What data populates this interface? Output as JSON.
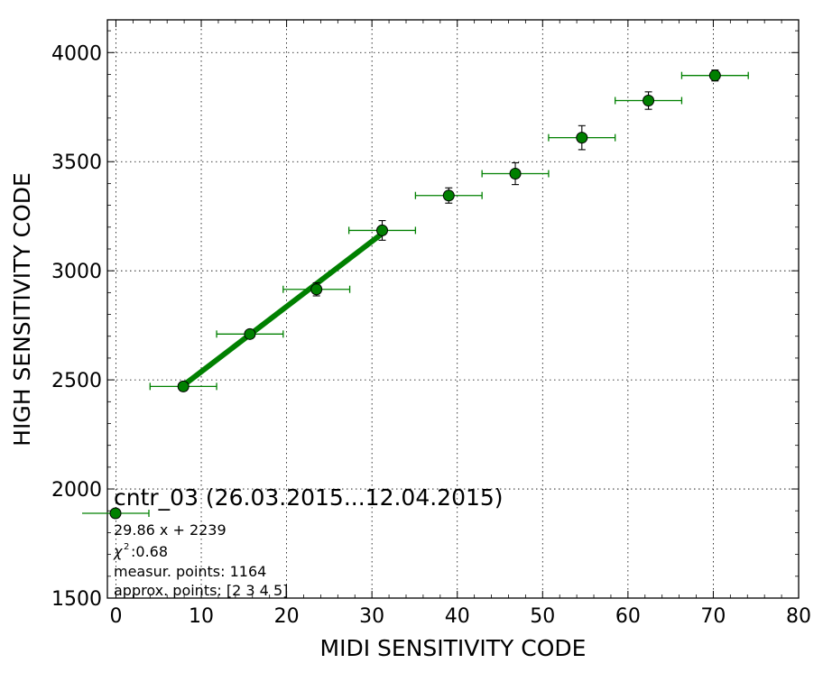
{
  "chart_data": {
    "type": "scatter",
    "xlabel": "MIDI SENSITIVITY CODE",
    "ylabel": "HIGH SENSITIVITY CODE",
    "xlim": [
      -1,
      80
    ],
    "ylim": [
      1500,
      4150
    ],
    "x_ticks": [
      0,
      10,
      20,
      30,
      40,
      50,
      60,
      70,
      80
    ],
    "y_ticks": [
      1500,
      2000,
      2500,
      3000,
      3500,
      4000
    ],
    "grid": true,
    "colors": {
      "series": "#008000",
      "marker_edge": "#000000"
    },
    "series": [
      {
        "x": [
          7.9,
          15.7,
          23.5,
          31.2,
          39.0,
          46.8,
          54.6,
          62.4,
          70.2
        ],
        "y": [
          2470,
          2710,
          2915,
          3185,
          3345,
          3445,
          3610,
          3780,
          3895
        ],
        "xerr": [
          3.9,
          3.9,
          3.9,
          3.9,
          3.9,
          3.9,
          3.9,
          3.9,
          3.9
        ],
        "yerr": [
          20,
          15,
          30,
          45,
          35,
          50,
          55,
          40,
          25
        ]
      }
    ],
    "fit": {
      "slope": 29.86,
      "intercept": 2239,
      "x_range": [
        7.9,
        31.2
      ]
    },
    "legend": {
      "title": "cntr_03 (26.03.2015...12.04.2015)",
      "equation": "29.86 x + 2239",
      "chi_symbol": "χ",
      "chi_exponent": "2",
      "chi_value": " :0.68",
      "measur_points": "measur. points: 1164",
      "approx_points": "approx. points: [2 3 4 5]",
      "placement": "lower-left"
    }
  }
}
